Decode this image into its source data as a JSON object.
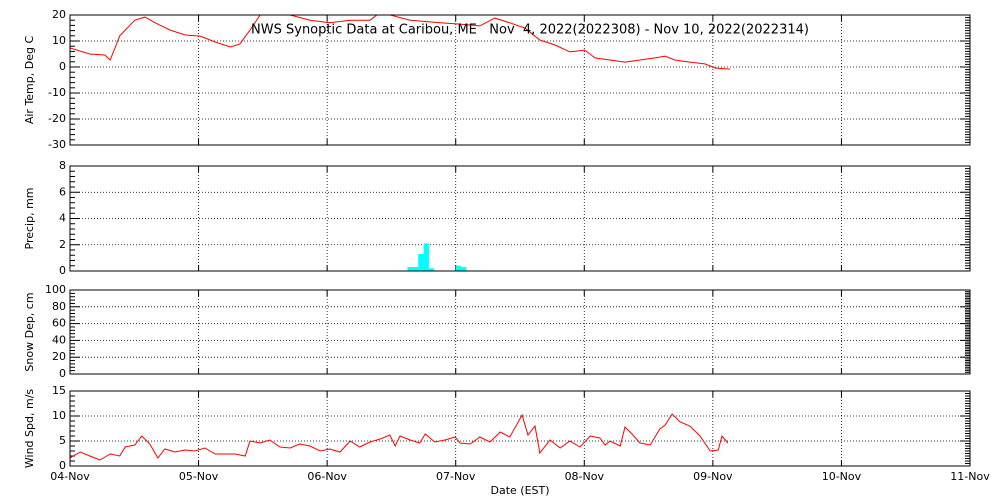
{
  "chart_data": [
    {
      "type": "line",
      "title": "NWS Synoptic Data at Caribou, ME   Nov  4, 2022(2022308) - Nov 10, 2022(2022314)",
      "ylabel": "Air Temp, Deg C",
      "ylim": [
        -30,
        20
      ],
      "yticks": [
        -30,
        -20,
        -10,
        0,
        10,
        20
      ],
      "color": "#ff0000",
      "x": [
        0,
        3.7,
        6.5,
        7.5,
        9.3,
        12.1,
        14,
        15.9,
        18.7,
        21.5,
        24.3,
        27.1,
        29.9,
        31.7,
        33.6,
        35.8,
        41.1,
        44.8,
        48.5,
        52.3,
        56,
        57.9,
        63.5,
        69.1,
        72.8,
        76.5,
        79.3,
        82.1,
        84.9,
        87.7,
        90.5,
        93.3,
        96.1,
        98,
        100.8,
        103.6,
        106.4,
        109.2,
        111.1,
        112.9,
        115.7,
        118.5,
        120.4,
        123.2
      ],
      "values": [
        7.3,
        5,
        4.6,
        2.7,
        12,
        18,
        19.2,
        17,
        14.2,
        12.3,
        11.9,
        9.6,
        7.7,
        8.8,
        14.2,
        21,
        20,
        18,
        17,
        18,
        18,
        21,
        18,
        17,
        16.5,
        15.8,
        18.8,
        17,
        15,
        10.4,
        8.5,
        5.8,
        6.5,
        3.5,
        2.7,
        1.9,
        2.7,
        3.5,
        4.2,
        2.7,
        1.9,
        1.2,
        -0.4,
        -0.8
      ]
    },
    {
      "type": "bar",
      "ylabel": "Precip, mm",
      "ylim": [
        0,
        8
      ],
      "yticks": [
        0,
        2,
        4,
        6,
        8
      ],
      "color": "#00ffff",
      "x": [
        63,
        64,
        65,
        66,
        67,
        72,
        73
      ],
      "values": [
        0.3,
        0.3,
        1.3,
        2.1,
        0.2,
        0.4,
        0.3
      ]
    },
    {
      "type": "line",
      "ylabel": "Snow Dep, cm",
      "ylim": [
        0,
        100
      ],
      "yticks": [
        0,
        20,
        40,
        60,
        80,
        100
      ]
    },
    {
      "type": "line",
      "ylabel": "Wind Spd, m/s",
      "xlabel": "Date (EST)",
      "ylim": [
        0,
        15
      ],
      "yticks": [
        0,
        5,
        10,
        15
      ],
      "color": "#ff0000",
      "xlim": [
        0,
        168
      ],
      "xticks": [
        {
          "value": 0,
          "label": "04-Nov"
        },
        {
          "value": 24,
          "label": "05-Nov"
        },
        {
          "value": 48,
          "label": "06-Nov"
        },
        {
          "value": 72,
          "label": "07-Nov"
        },
        {
          "value": 96,
          "label": "08-Nov"
        },
        {
          "value": 120,
          "label": "09-Nov"
        },
        {
          "value": 144,
          "label": "10-Nov"
        },
        {
          "value": 168,
          "label": "11-Nov"
        }
      ],
      "x": [
        0,
        1.9,
        3.7,
        5.6,
        7.5,
        9.3,
        10.3,
        12.1,
        13.4,
        14.9,
        16.4,
        17.7,
        19.6,
        21.5,
        23.3,
        25.2,
        27.1,
        30.8,
        32.7,
        33.6,
        35.5,
        37.3,
        39.2,
        41.1,
        42.9,
        44.8,
        46.7,
        48.5,
        50.4,
        52.3,
        54.1,
        56,
        57.9,
        59.7,
        60.7,
        61.6,
        63.5,
        65.3,
        66.3,
        68.1,
        70,
        71.9,
        72.8,
        74.7,
        76.5,
        78.4,
        80.3,
        82.1,
        84.4,
        85.5,
        86.8,
        87.7,
        89.6,
        91.5,
        93.3,
        95.2,
        97.1,
        98.9,
        99.9,
        100.8,
        102.7,
        103.6,
        104.9,
        106.4,
        108.3,
        110.1,
        111.1,
        112.4,
        113.9,
        115.7,
        117.6,
        119.5,
        121,
        121.7,
        122.8
      ],
      "values": [
        1.6,
        2.8,
        2,
        1.2,
        2.4,
        2,
        3.8,
        4.2,
        6,
        4.4,
        1.6,
        3.4,
        2.8,
        3.2,
        3,
        3.6,
        2.4,
        2.4,
        2,
        5,
        4.6,
        5.2,
        3.8,
        3.6,
        4.4,
        4,
        3,
        3.4,
        2.8,
        5,
        3.8,
        4.8,
        5.4,
        6.2,
        4,
        6,
        5.2,
        4.6,
        6.4,
        4.8,
        5.2,
        5.8,
        4.6,
        4.4,
        5.8,
        4.8,
        6.8,
        5.8,
        10.2,
        6.2,
        8,
        2.6,
        5.2,
        3.6,
        5,
        3.8,
        6,
        5.6,
        4.2,
        5,
        4,
        7.8,
        6.4,
        4.6,
        4.2,
        7.4,
        8.2,
        10.4,
        8.8,
        8,
        6,
        3,
        3.2,
        6,
        4.6
      ]
    }
  ]
}
